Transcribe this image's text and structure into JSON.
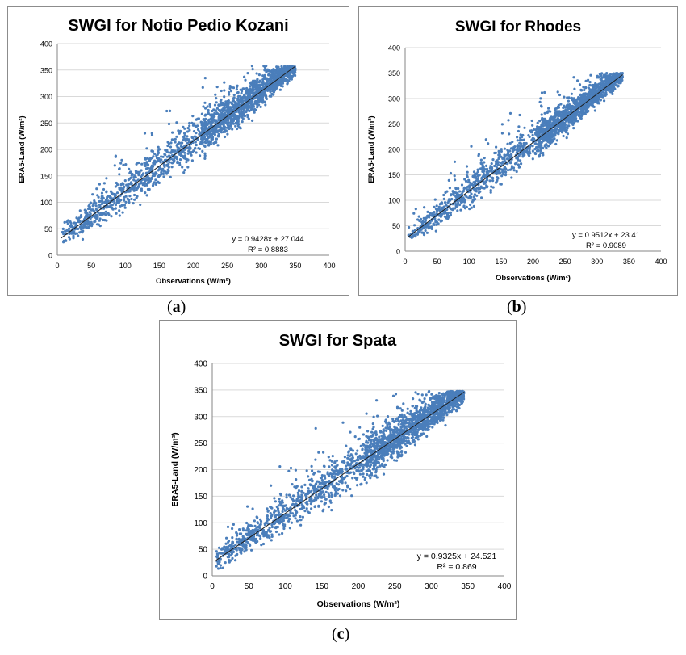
{
  "panels": [
    {
      "label_letter": "a"
    },
    {
      "label_letter": "b"
    },
    {
      "label_letter": "c"
    }
  ],
  "chart_data": [
    {
      "type": "scatter",
      "title": "SWGI for Notio Pedio Kozani",
      "xlabel": "Observations (W/m²)",
      "ylabel": "ERA5-Land (W/m²)",
      "xlim": [
        0,
        400
      ],
      "ylim": [
        0,
        400
      ],
      "xticks": [
        0,
        50,
        100,
        150,
        200,
        250,
        300,
        350,
        400
      ],
      "yticks": [
        0,
        50,
        100,
        150,
        200,
        250,
        300,
        350,
        400
      ],
      "grid": "horizontal",
      "point_color": "#4a7ebb",
      "trendline": {
        "slope": 0.9428,
        "intercept": 27.044,
        "r2": 0.8883,
        "equation_text": "y = 0.9428x + 27.044",
        "r2_text": "R² = 0.8883"
      },
      "data_range": {
        "x": [
          5,
          350
        ],
        "y": [
          10,
          358
        ]
      },
      "point_count": 2000,
      "scatter_spread": 30
    },
    {
      "type": "scatter",
      "title": "SWGI for Rhodes",
      "xlabel": "Observations (W/m²)",
      "ylabel": "ERA5-Land (W/m²)",
      "xlim": [
        0,
        400
      ],
      "ylim": [
        0,
        400
      ],
      "xticks": [
        0,
        50,
        100,
        150,
        200,
        250,
        300,
        350,
        400
      ],
      "yticks": [
        0,
        50,
        100,
        150,
        200,
        250,
        300,
        350,
        400
      ],
      "grid": "horizontal",
      "point_color": "#4a7ebb",
      "trendline": {
        "slope": 0.9512,
        "intercept": 23.41,
        "r2": 0.9089,
        "equation_text": "y = 0.9512x + 23.41",
        "r2_text": "R² = 0.9089"
      },
      "data_range": {
        "x": [
          5,
          340
        ],
        "y": [
          25,
          350
        ]
      },
      "point_count": 1900,
      "scatter_spread": 26
    },
    {
      "type": "scatter",
      "title": "SWGI for Spata",
      "xlabel": "Observations (W/m²)",
      "ylabel": "ERA5-Land (W/m²)",
      "xlim": [
        0,
        400
      ],
      "ylim": [
        0,
        400
      ],
      "xticks": [
        0,
        50,
        100,
        150,
        200,
        250,
        300,
        350,
        400
      ],
      "yticks": [
        0,
        50,
        100,
        150,
        200,
        250,
        300,
        350,
        400
      ],
      "grid": "horizontal",
      "point_color": "#4a7ebb",
      "trendline": {
        "slope": 0.9325,
        "intercept": 24.521,
        "r2": 0.869,
        "equation_text": "y = 0.9325x + 24.521",
        "r2_text": "R² = 0.869"
      },
      "data_range": {
        "x": [
          5,
          345
        ],
        "y": [
          12,
          348
        ]
      },
      "point_count": 2200,
      "scatter_spread": 32
    }
  ]
}
